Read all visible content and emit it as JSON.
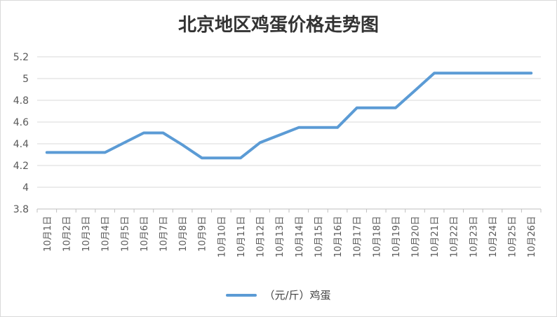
{
  "chart_data": {
    "type": "line",
    "title": "北京地区鸡蛋价格走势图",
    "xlabel": "",
    "ylabel": "",
    "categories": [
      "10月1日",
      "10月2日",
      "10月3日",
      "10月4日",
      "10月5日",
      "10月6日",
      "10月7日",
      "10月8日",
      "10月9日",
      "10月10日",
      "10月11日",
      "10月12日",
      "10月13日",
      "10月14日",
      "10月15日",
      "10月16日",
      "10月17日",
      "10月18日",
      "10月19日",
      "10月20日",
      "10月21日",
      "10月22日",
      "10月23日",
      "10月24日",
      "10月25日",
      "10月26日"
    ],
    "series": [
      {
        "name": "（元/斤）鸡蛋",
        "color": "#5b9bd5",
        "values": [
          4.32,
          4.32,
          4.32,
          4.32,
          4.41,
          4.5,
          4.5,
          4.39,
          4.27,
          4.27,
          4.27,
          4.41,
          4.48,
          4.55,
          4.55,
          4.55,
          4.73,
          4.73,
          4.73,
          4.89,
          5.05,
          5.05,
          5.05,
          5.05,
          5.05,
          5.05
        ]
      }
    ],
    "ylim": [
      3.8,
      5.2
    ],
    "yticks": [
      "3.8",
      "4",
      "4.2",
      "4.4",
      "4.6",
      "4.8",
      "5",
      "5.2"
    ],
    "grid": true,
    "legend_position": "bottom"
  }
}
